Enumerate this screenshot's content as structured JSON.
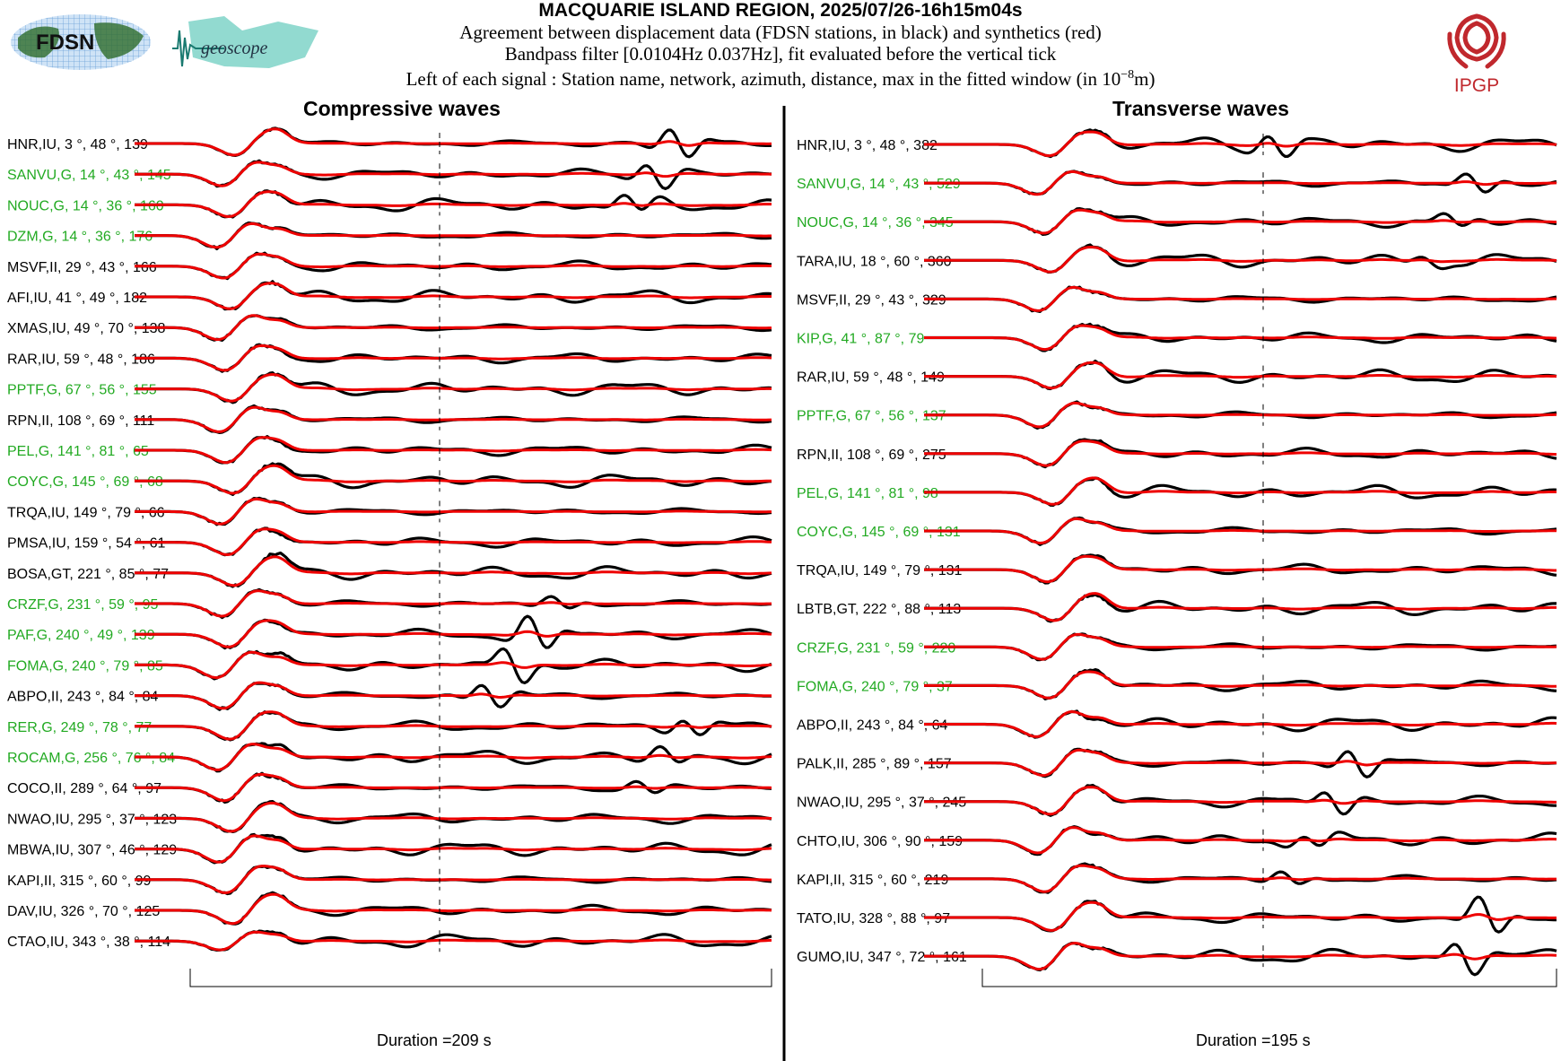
{
  "header": {
    "title": "MACQUARIE ISLAND REGION, 2025/07/26-16h15m04s",
    "line1": "Agreement between displacement data (FDSN stations, in black) and synthetics (red)",
    "line2": "Bandpass filter [0.0104Hz 0.037Hz], fit evaluated before the vertical tick",
    "line3_prefix": "Left of each signal : Station name, network, azimuth, distance, max in the fitted window (in 10",
    "line3_exp": "−8",
    "line3_suffix": "m)"
  },
  "logos": {
    "fdsn": "FDSN",
    "geoscope": "geoscope",
    "ipgp": "IPGP"
  },
  "colors": {
    "data": "#000000",
    "synthetic": "#ee0000",
    "geoscope_station": "#22aa22",
    "other_station": "#000000"
  },
  "chart_data": [
    {
      "type": "line",
      "title": "Compressive waves",
      "footer": "Duration =209 s",
      "legend": "data in black, synthetics in red",
      "stations": [
        {
          "label": "HNR,IU, 3 °, 48 °, 139",
          "green": false
        },
        {
          "label": "SANVU,G, 14 °, 43 °, 145",
          "green": true
        },
        {
          "label": "NOUC,G, 14 °, 36 °, 160",
          "green": true
        },
        {
          "label": "DZM,G, 14 °, 36 °, 176",
          "green": true
        },
        {
          "label": "MSVF,II, 29 °, 43 °, 166",
          "green": false
        },
        {
          "label": "AFI,IU, 41 °, 49 °, 182",
          "green": false
        },
        {
          "label": "XMAS,IU, 49 °, 70 °, 138",
          "green": false
        },
        {
          "label": "RAR,IU, 59 °, 48 °, 186",
          "green": false
        },
        {
          "label": "PPTF,G, 67 °, 56 °, 155",
          "green": true
        },
        {
          "label": "RPN,II, 108 °, 69 °, 111",
          "green": false
        },
        {
          "label": "PEL,G, 141 °, 81 °, 65",
          "green": true
        },
        {
          "label": "COYC,G, 145 °, 69 °, 68",
          "green": true
        },
        {
          "label": "TRQA,IU, 149 °, 79 °, 66",
          "green": false
        },
        {
          "label": "PMSA,IU, 159 °, 54 °, 61",
          "green": false
        },
        {
          "label": "BOSA,GT, 221 °, 85 °, 77",
          "green": false
        },
        {
          "label": "CRZF,G, 231 °, 59 °, 95",
          "green": true
        },
        {
          "label": "PAF,G, 240 °, 49 °, 139",
          "green": true
        },
        {
          "label": "FOMA,G, 240 °, 79 °, 85",
          "green": true
        },
        {
          "label": "ABPO,II, 243 °, 84 °, 84",
          "green": false
        },
        {
          "label": "RER,G, 249 °, 78 °, 77",
          "green": true
        },
        {
          "label": "ROCAM,G, 256 °, 76 °, 84",
          "green": true
        },
        {
          "label": "COCO,II, 289 °, 64 °, 97",
          "green": false
        },
        {
          "label": "NWAO,IU, 295 °, 37 °, 123",
          "green": false
        },
        {
          "label": "MBWA,IU, 307 °, 46 °, 129",
          "green": false
        },
        {
          "label": "KAPI,II, 315 °, 60 °, 99",
          "green": false
        },
        {
          "label": "DAV,IU, 326 °, 70 °, 125",
          "green": false
        },
        {
          "label": "CTAO,IU, 343 °, 38 °, 114",
          "green": false
        }
      ]
    },
    {
      "type": "line",
      "title": "Transverse waves",
      "footer": "Duration =195 s",
      "legend": "data in black, synthetics in red",
      "stations": [
        {
          "label": "HNR,IU, 3 °, 48 °, 382",
          "green": false
        },
        {
          "label": "SANVU,G, 14 °, 43 °, 529",
          "green": true
        },
        {
          "label": "NOUC,G, 14 °, 36 °, 345",
          "green": true
        },
        {
          "label": "TARA,IU, 18 °, 60 °, 360",
          "green": false
        },
        {
          "label": "MSVF,II, 29 °, 43 °, 329",
          "green": false
        },
        {
          "label": "KIP,G, 41 °, 87 °, 79",
          "green": true
        },
        {
          "label": "RAR,IU, 59 °, 48 °, 149",
          "green": false
        },
        {
          "label": "PPTF,G, 67 °, 56 °, 137",
          "green": true
        },
        {
          "label": "RPN,II, 108 °, 69 °, 275",
          "green": false
        },
        {
          "label": "PEL,G, 141 °, 81 °, 98",
          "green": true
        },
        {
          "label": "COYC,G, 145 °, 69 °, 131",
          "green": true
        },
        {
          "label": "TRQA,IU, 149 °, 79 °, 131",
          "green": false
        },
        {
          "label": "LBTB,GT, 222 °, 88 °, 113",
          "green": false
        },
        {
          "label": "CRZF,G, 231 °, 59 °, 220",
          "green": true
        },
        {
          "label": "FOMA,G, 240 °, 79 °, 37",
          "green": true
        },
        {
          "label": "ABPO,II, 243 °, 84 °, 64",
          "green": false
        },
        {
          "label": "PALK,II, 285 °, 89 °, 157",
          "green": false
        },
        {
          "label": "NWAO,IU, 295 °, 37 °, 245",
          "green": false
        },
        {
          "label": "CHTO,IU, 306 °, 90 °, 159",
          "green": false
        },
        {
          "label": "KAPI,II, 315 °, 60 °, 219",
          "green": false
        },
        {
          "label": "TATO,IU, 328 °, 88 °, 97",
          "green": false
        },
        {
          "label": "GUMO,IU, 347 °, 72 °, 161",
          "green": false
        }
      ]
    }
  ]
}
